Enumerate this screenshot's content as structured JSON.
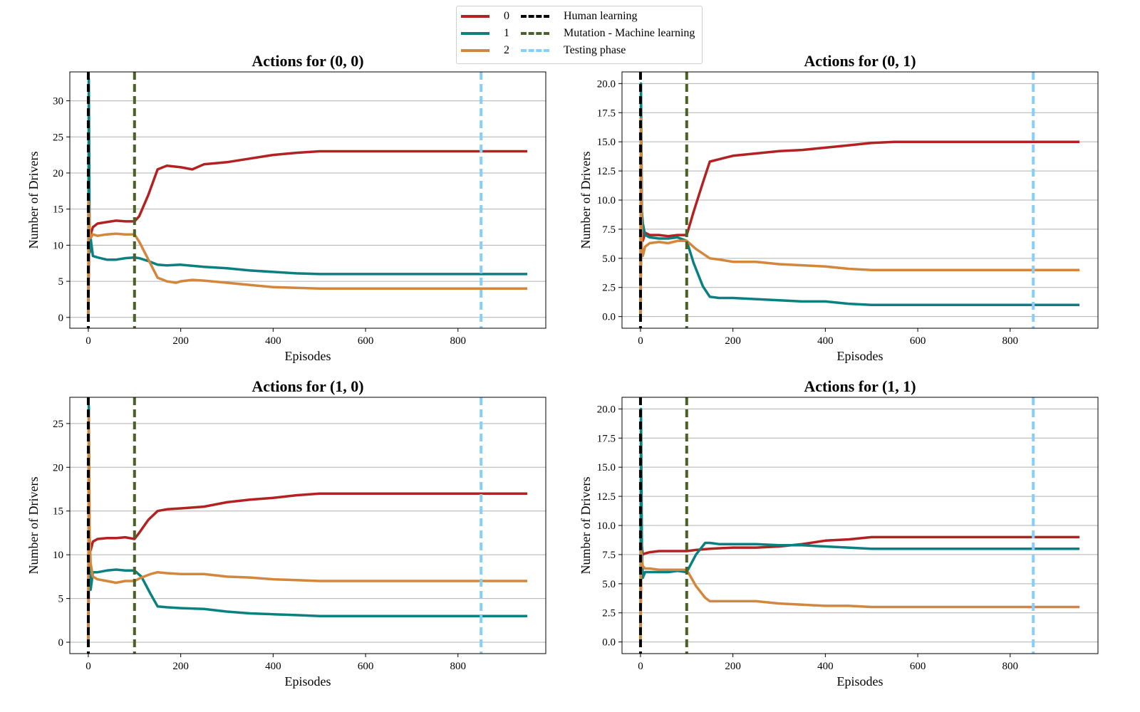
{
  "legend": {
    "series": [
      {
        "label": "0",
        "color": "#b22222"
      },
      {
        "label": "1",
        "color": "#0a8080"
      },
      {
        "label": "2",
        "color": "#d2873c"
      }
    ],
    "phases": [
      {
        "label": "Human learning",
        "color": "#000000"
      },
      {
        "label": "Mutation - Machine learning",
        "color": "#4b6128"
      },
      {
        "label": "Testing phase",
        "color": "#87cefa"
      }
    ]
  },
  "chart_data": [
    {
      "type": "line",
      "title": "Actions for (0, 0)",
      "xlabel": "Episodes",
      "ylabel": "Number of Drivers",
      "xlim": [
        -40,
        990
      ],
      "ylim": [
        -1.5,
        34
      ],
      "xticks": [
        "0",
        "200",
        "400",
        "600",
        "800"
      ],
      "yticks": [
        "0",
        "5",
        "10",
        "15",
        "20",
        "25",
        "30"
      ],
      "vlines": {
        "human_learning": 0,
        "machine_learning": 100,
        "testing": 850
      },
      "series": [
        {
          "name": "0",
          "color": "#b22222",
          "x": [
            0,
            2,
            5,
            10,
            20,
            40,
            60,
            80,
            100,
            110,
            130,
            150,
            170,
            200,
            225,
            250,
            300,
            350,
            400,
            450,
            500,
            550,
            600,
            700,
            800,
            950
          ],
          "y": [
            0,
            12,
            11.5,
            12.5,
            13,
            13.2,
            13.4,
            13.3,
            13.3,
            14,
            17,
            20.5,
            21,
            20.8,
            20.5,
            21.2,
            21.5,
            22,
            22.5,
            22.8,
            23,
            23,
            23,
            23,
            23,
            23
          ]
        },
        {
          "name": "1",
          "color": "#0a8080",
          "x": [
            0,
            1,
            3,
            5,
            10,
            20,
            40,
            60,
            80,
            100,
            110,
            130,
            150,
            170,
            200,
            250,
            300,
            350,
            400,
            450,
            500,
            600,
            700,
            800,
            950
          ],
          "y": [
            0,
            33,
            9,
            11,
            8.5,
            8.3,
            8,
            8,
            8.2,
            8.3,
            8.2,
            7.8,
            7.3,
            7.2,
            7.3,
            7,
            6.8,
            6.5,
            6.3,
            6.1,
            6,
            6,
            6,
            6,
            6
          ]
        },
        {
          "name": "2",
          "color": "#d2873c",
          "x": [
            0,
            1,
            3,
            5,
            10,
            20,
            40,
            60,
            80,
            100,
            110,
            130,
            150,
            170,
            190,
            200,
            225,
            250,
            300,
            350,
            400,
            450,
            500,
            600,
            700,
            800,
            950
          ],
          "y": [
            0,
            16,
            12,
            11,
            11.5,
            11.3,
            11.5,
            11.6,
            11.5,
            11.5,
            10.5,
            8,
            5.5,
            5,
            4.8,
            5,
            5.2,
            5.1,
            4.8,
            4.5,
            4.2,
            4.1,
            4,
            4,
            4,
            4,
            4
          ]
        }
      ]
    },
    {
      "type": "line",
      "title": "Actions for (0, 1)",
      "xlabel": "Episodes",
      "ylabel": "Number of Drivers",
      "xlim": [
        -40,
        990
      ],
      "ylim": [
        -1,
        21
      ],
      "xticks": [
        "0",
        "200",
        "400",
        "600",
        "800"
      ],
      "yticks": [
        "0.0",
        "2.5",
        "5.0",
        "7.5",
        "10.0",
        "12.5",
        "15.0",
        "17.5",
        "20.0"
      ],
      "vlines": {
        "human_learning": 0,
        "machine_learning": 100,
        "testing": 850
      },
      "series": [
        {
          "name": "0",
          "color": "#b22222",
          "x": [
            0,
            2,
            5,
            10,
            20,
            40,
            60,
            80,
            100,
            115,
            135,
            150,
            170,
            200,
            250,
            300,
            350,
            400,
            450,
            500,
            550,
            600,
            700,
            800,
            950
          ],
          "y": [
            0,
            9,
            6.5,
            7.2,
            7,
            7,
            6.9,
            7,
            7,
            9,
            11.5,
            13.3,
            13.5,
            13.8,
            14,
            14.2,
            14.3,
            14.5,
            14.7,
            14.9,
            15,
            15,
            15,
            15,
            15
          ]
        },
        {
          "name": "1",
          "color": "#0a8080",
          "x": [
            0,
            1,
            3,
            5,
            10,
            20,
            40,
            60,
            80,
            100,
            115,
            135,
            150,
            170,
            200,
            250,
            300,
            350,
            400,
            450,
            500,
            600,
            700,
            800,
            950
          ],
          "y": [
            0,
            20,
            9,
            8,
            7,
            6.8,
            6.7,
            6.7,
            6.8,
            6.5,
            4.6,
            2.6,
            1.7,
            1.6,
            1.6,
            1.5,
            1.4,
            1.3,
            1.3,
            1.1,
            1,
            1,
            1,
            1,
            1
          ]
        },
        {
          "name": "2",
          "color": "#d2873c",
          "x": [
            0,
            1,
            3,
            5,
            10,
            20,
            40,
            60,
            80,
            100,
            120,
            150,
            170,
            200,
            250,
            300,
            350,
            400,
            450,
            500,
            600,
            700,
            800,
            950
          ],
          "y": [
            0,
            17,
            6,
            5.2,
            6,
            6.3,
            6.4,
            6.3,
            6.5,
            6.5,
            5.8,
            5,
            4.9,
            4.7,
            4.7,
            4.5,
            4.4,
            4.3,
            4.1,
            4,
            4,
            4,
            4,
            4
          ]
        }
      ]
    },
    {
      "type": "line",
      "title": "Actions for (1, 0)",
      "xlabel": "Episodes",
      "ylabel": "Number of Drivers",
      "xlim": [
        -40,
        990
      ],
      "ylim": [
        -1.3,
        28
      ],
      "xticks": [
        "0",
        "200",
        "400",
        "600",
        "800"
      ],
      "yticks": [
        "0",
        "5",
        "10",
        "15",
        "20",
        "25"
      ],
      "vlines": {
        "human_learning": 0,
        "machine_learning": 100,
        "testing": 850
      },
      "series": [
        {
          "name": "0",
          "color": "#b22222",
          "x": [
            0,
            2,
            5,
            10,
            20,
            40,
            60,
            80,
            100,
            110,
            130,
            150,
            170,
            200,
            250,
            300,
            350,
            400,
            450,
            500,
            600,
            700,
            800,
            950
          ],
          "y": [
            0,
            12,
            10.5,
            11.5,
            11.8,
            11.9,
            11.9,
            12,
            11.8,
            12.5,
            14,
            15,
            15.2,
            15.3,
            15.5,
            16,
            16.3,
            16.5,
            16.8,
            17,
            17,
            17,
            17,
            17
          ]
        },
        {
          "name": "1",
          "color": "#0a8080",
          "x": [
            0,
            1,
            3,
            5,
            10,
            20,
            40,
            60,
            80,
            100,
            115,
            135,
            150,
            170,
            200,
            250,
            300,
            350,
            400,
            450,
            500,
            600,
            700,
            800,
            950
          ],
          "y": [
            0,
            27,
            8,
            6,
            8,
            8,
            8.2,
            8.3,
            8.2,
            8.2,
            7.5,
            5.5,
            4.1,
            4,
            3.9,
            3.8,
            3.5,
            3.3,
            3.2,
            3.1,
            3,
            3,
            3,
            3,
            3
          ]
        },
        {
          "name": "2",
          "color": "#d2873c",
          "x": [
            0,
            1,
            3,
            5,
            10,
            20,
            40,
            60,
            80,
            100,
            115,
            135,
            150,
            170,
            200,
            250,
            300,
            350,
            400,
            450,
            500,
            600,
            700,
            800,
            950
          ],
          "y": [
            0,
            26,
            12,
            9,
            7.5,
            7.2,
            7,
            6.8,
            7,
            7,
            7.4,
            7.8,
            8,
            7.9,
            7.8,
            7.8,
            7.5,
            7.4,
            7.2,
            7.1,
            7,
            7,
            7,
            7,
            7
          ]
        }
      ]
    },
    {
      "type": "line",
      "title": "Actions for (1, 1)",
      "xlabel": "Episodes",
      "ylabel": "Number of Drivers",
      "xlim": [
        -40,
        990
      ],
      "ylim": [
        -1,
        21
      ],
      "xticks": [
        "0",
        "200",
        "400",
        "600",
        "800"
      ],
      "yticks": [
        "0.0",
        "2.5",
        "5.0",
        "7.5",
        "10.0",
        "12.5",
        "15.0",
        "17.5",
        "20.0"
      ],
      "vlines": {
        "human_learning": 0,
        "machine_learning": 100,
        "testing": 850
      },
      "series": [
        {
          "name": "0",
          "color": "#b22222",
          "x": [
            0,
            2,
            5,
            10,
            20,
            40,
            60,
            80,
            100,
            120,
            150,
            200,
            250,
            300,
            350,
            400,
            450,
            500,
            600,
            700,
            800,
            950
          ],
          "y": [
            0,
            8.5,
            7.5,
            7.6,
            7.7,
            7.8,
            7.8,
            7.8,
            7.8,
            7.9,
            8,
            8.1,
            8.1,
            8.2,
            8.4,
            8.7,
            8.8,
            9,
            9,
            9,
            9,
            9
          ]
        },
        {
          "name": "1",
          "color": "#0a8080",
          "x": [
            0,
            1,
            3,
            5,
            10,
            20,
            40,
            60,
            80,
            100,
            120,
            140,
            150,
            170,
            200,
            250,
            300,
            350,
            400,
            450,
            500,
            600,
            700,
            800,
            950
          ],
          "y": [
            0,
            20,
            8,
            5.5,
            6,
            6,
            6,
            6,
            6.1,
            6,
            7.5,
            8.5,
            8.5,
            8.4,
            8.4,
            8.4,
            8.3,
            8.3,
            8.2,
            8.1,
            8,
            8,
            8,
            8,
            8
          ]
        },
        {
          "name": "2",
          "color": "#d2873c",
          "x": [
            0,
            1,
            3,
            5,
            10,
            20,
            40,
            60,
            80,
            100,
            120,
            140,
            150,
            170,
            200,
            250,
            300,
            350,
            400,
            450,
            500,
            600,
            700,
            800,
            950
          ],
          "y": [
            0,
            8,
            7,
            6.5,
            6.3,
            6.3,
            6.2,
            6.2,
            6.2,
            6.2,
            4.8,
            3.8,
            3.5,
            3.5,
            3.5,
            3.5,
            3.3,
            3.2,
            3.1,
            3.1,
            3,
            3,
            3,
            3,
            3
          ]
        }
      ]
    }
  ]
}
